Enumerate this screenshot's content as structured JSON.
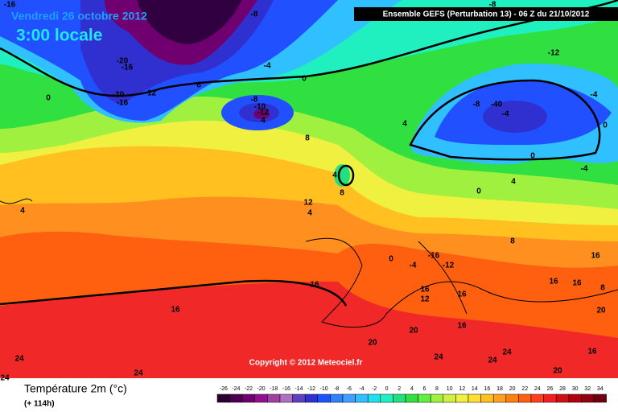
{
  "title": "Vendredi 26 octobre 2012",
  "time": "3:00 locale",
  "model": "Ensemble GEFS (Perturbation 13)  -  06 Z du 21/10/2012",
  "copyright": "Copyright © 2012 Meteociel.fr",
  "variable": "Température 2m (°c)",
  "lead": "(+ 114h)",
  "legend": {
    "values": [
      -26,
      -24,
      -22,
      -20,
      -18,
      -16,
      -14,
      -12,
      -10,
      -8,
      -6,
      -4,
      -2,
      0,
      2,
      4,
      6,
      8,
      10,
      12,
      14,
      16,
      18,
      20,
      22,
      24,
      26,
      28,
      30,
      32,
      34
    ],
    "colors": [
      "#2a0030",
      "#4a0050",
      "#700070",
      "#901090",
      "#a040a0",
      "#b070c0",
      "#6040c0",
      "#3030d0",
      "#2050ff",
      "#3080ff",
      "#40a0ff",
      "#30c0ff",
      "#20e0f0",
      "#20f0c0",
      "#20e080",
      "#30e040",
      "#60f040",
      "#a0f040",
      "#d0f040",
      "#f0f040",
      "#ffe030",
      "#ffc020",
      "#ffa020",
      "#ff8010",
      "#ff6010",
      "#ff4020",
      "#f02020",
      "#d01010",
      "#b00010",
      "#900010",
      "#700010"
    ]
  },
  "contour_labels": [
    -16,
    -8,
    -8,
    -20,
    -16,
    -4,
    0,
    -20,
    -16,
    -12,
    8,
    0,
    -8,
    -10,
    -12,
    4,
    8,
    4,
    -12,
    -8,
    -40,
    -4,
    -4,
    0,
    0,
    4,
    -4,
    0,
    4,
    8,
    12,
    4,
    4,
    8,
    0,
    -4,
    -16,
    -12,
    16,
    16,
    16,
    12,
    16,
    16,
    16,
    8,
    20,
    16,
    20,
    16,
    20,
    24,
    24,
    24,
    16,
    24,
    24,
    24,
    20
  ]
}
